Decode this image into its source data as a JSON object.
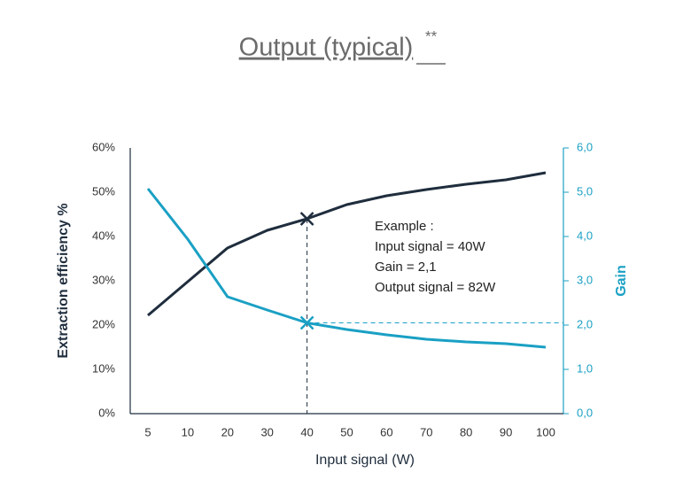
{
  "chart_data": {
    "type": "line",
    "title": "Output (typical)",
    "title_superscript": "**",
    "x_label": "Input signal (W)",
    "y_label": "Extraction efficiency %",
    "y2_label": "Gain",
    "categories": [
      "5",
      "10",
      "20",
      "30",
      "40",
      "50",
      "60",
      "70",
      "80",
      "90",
      "100"
    ],
    "series": [
      {
        "name": "Extraction efficiency",
        "color": "#1f2d3d",
        "values": [
          22.2,
          29.8,
          37.4,
          41.4,
          44,
          47.2,
          49.2,
          50.6,
          51.8,
          52.8,
          54.4
        ]
      },
      {
        "name": "Gain",
        "color": "#1aa0c4",
        "axis": "y2",
        "values": [
          5.08,
          3.94,
          2.64,
          2.34,
          2.05,
          1.9,
          1.78,
          1.68,
          1.62,
          1.58,
          1.5
        ]
      }
    ],
    "ylim": [
      0,
      60
    ],
    "yticks": [
      {
        "value": 0,
        "label": "0%"
      },
      {
        "value": 10,
        "label": "10%"
      },
      {
        "value": 20,
        "label": "20%"
      },
      {
        "value": 30,
        "label": "30%"
      },
      {
        "value": 40,
        "label": "40%"
      },
      {
        "value": 50,
        "label": "50%"
      },
      {
        "value": 60,
        "label": "60%"
      }
    ],
    "y2lim": [
      0,
      6
    ],
    "y2ticks": [
      {
        "value": 0,
        "label": "0,0"
      },
      {
        "value": 1,
        "label": "1,0"
      },
      {
        "value": 2,
        "label": "2,0"
      },
      {
        "value": 3,
        "label": "3,0"
      },
      {
        "value": 4,
        "label": "4,0"
      },
      {
        "value": 5,
        "label": "5,0"
      },
      {
        "value": 6,
        "label": "6,0"
      }
    ],
    "highlight": "40",
    "annotations": [
      "Example :",
      "Input signal = 40W",
      "Gain = 2,1",
      "Output signal = 82W"
    ]
  }
}
